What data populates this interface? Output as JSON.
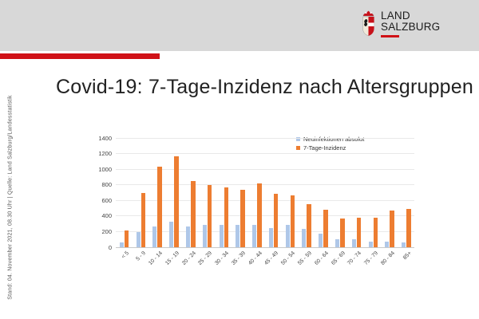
{
  "header": {
    "logo_line1": "LAND",
    "logo_line2": "SALZBURG"
  },
  "side_note": "Stand: 04. November 2021, 08.30 Uhr | Quelle: Land Salzburg/Landesstatistik",
  "title": "Covid-19: 7-Tage-Inzidenz nach Altersgruppen",
  "colors": {
    "header_band": "#d8d8d8",
    "accent_red": "#d01117",
    "bar_blue": "#afc7e8",
    "bar_orange": "#ed7d31"
  },
  "chart_data": {
    "type": "bar",
    "title": "",
    "xlabel": "",
    "ylabel": "",
    "ylim": [
      0,
      1400
    ],
    "ytick_step": 200,
    "grid": true,
    "legend_position": "top-right",
    "categories": [
      "< 5",
      "5 - 9",
      "10 - 14",
      "15 - 19",
      "20 - 24",
      "25 - 29",
      "30 - 34",
      "35 - 39",
      "40 - 44",
      "45 - 49",
      "50 - 54",
      "55 - 59",
      "60 - 64",
      "65 - 69",
      "70 - 74",
      "75 - 79",
      "80 - 84",
      "85+"
    ],
    "series": [
      {
        "name": "Neuinfektionen absolut",
        "color": "#afc7e8",
        "values": [
          60,
          190,
          270,
          325,
          265,
          285,
          290,
          285,
          290,
          250,
          285,
          235,
          170,
          100,
          100,
          75,
          70,
          60
        ]
      },
      {
        "name": "7-Tage-Inzidenz",
        "color": "#ed7d31",
        "values": [
          210,
          695,
          1030,
          1165,
          850,
          800,
          765,
          740,
          820,
          680,
          665,
          550,
          485,
          365,
          380,
          375,
          465,
          495
        ]
      }
    ]
  }
}
